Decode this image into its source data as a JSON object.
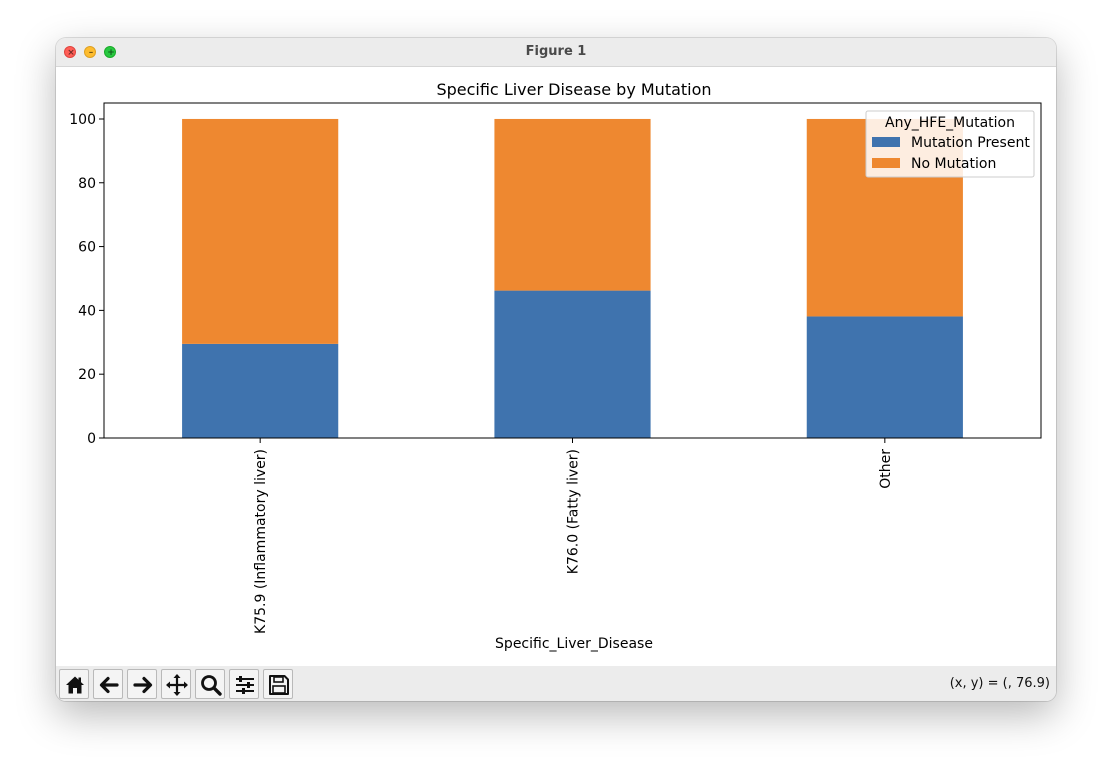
{
  "window": {
    "title": "Figure 1"
  },
  "toolbar": {
    "buttons": [
      {
        "name": "home-button",
        "icon": "home-icon"
      },
      {
        "name": "back-button",
        "icon": "arrow-left-icon"
      },
      {
        "name": "forward-button",
        "icon": "arrow-right-icon"
      },
      {
        "name": "pan-button",
        "icon": "move-icon"
      },
      {
        "name": "zoom-button",
        "icon": "magnifier-icon"
      },
      {
        "name": "configure-subplots-button",
        "icon": "sliders-icon"
      },
      {
        "name": "save-button",
        "icon": "floppy-disk-icon"
      }
    ],
    "coords": "(x, y) = (, 76.9)"
  },
  "chart_data": {
    "type": "bar",
    "stacked": true,
    "title": "Specific Liver Disease by Mutation",
    "xlabel": "Specific_Liver_Disease",
    "ylabel": "",
    "categories": [
      "K75.9 (Inflammatory liver)",
      "K76.0 (Fatty liver)",
      "Other"
    ],
    "series": [
      {
        "name": "Mutation Present",
        "values": [
          29.5,
          46.2,
          38.1
        ],
        "color": "#3f73ae"
      },
      {
        "name": "No Mutation",
        "values": [
          70.5,
          53.8,
          61.9
        ],
        "color": "#ee8830"
      }
    ],
    "ylim": [
      0,
      105
    ],
    "yticks": [
      0,
      20,
      40,
      60,
      80,
      100
    ],
    "legend": {
      "title": "Any_HFE_Mutation",
      "placement": "top-right"
    },
    "grid": false
  }
}
